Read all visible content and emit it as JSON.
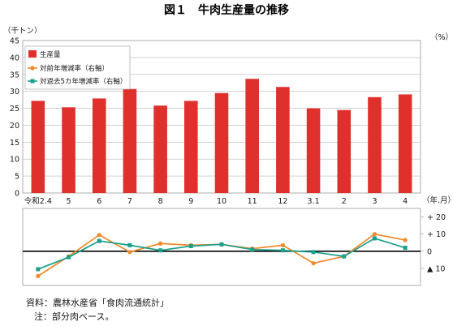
{
  "header": {
    "title": "図１　牛肉生産量の推移"
  },
  "axes": {
    "left_unit": "（千トン）",
    "right_unit": "（%）",
    "x_unit": "（年.月）"
  },
  "notes": {
    "source": "資料：農林水産省「食肉流通統計」",
    "note": "注：部分肉ベース。"
  },
  "chart_data": [
    {
      "type": "bar",
      "title": "図１　牛肉生産量の推移",
      "ylabel": "（千トン）",
      "xlabel": "（年.月）",
      "categories": [
        "令和2.4",
        "5",
        "6",
        "7",
        "8",
        "9",
        "10",
        "11",
        "12",
        "3.1",
        "2",
        "3",
        "4"
      ],
      "series": [
        {
          "name": "生産量",
          "color": "#e0302c",
          "values": [
            27.2,
            25.3,
            27.9,
            30.7,
            25.8,
            27.2,
            29.5,
            33.7,
            31.3,
            25.0,
            24.5,
            28.3,
            29.1
          ]
        }
      ],
      "ylim": [
        0,
        45
      ],
      "yticks": [
        0,
        5,
        10,
        15,
        20,
        25,
        30,
        35,
        40,
        45
      ],
      "grid": true,
      "legend": "top-left"
    },
    {
      "type": "line",
      "ylabel": "（%）",
      "categories": [
        "令和2.4",
        "5",
        "6",
        "7",
        "8",
        "9",
        "10",
        "11",
        "12",
        "3.1",
        "2",
        "3",
        "4"
      ],
      "series": [
        {
          "name": "対前年増減率（右軸）",
          "color": "#f08a2c",
          "values": [
            -14.5,
            -3.0,
            9.5,
            -0.5,
            4.5,
            3.5,
            4.0,
            1.5,
            3.5,
            -7.0,
            -3.0,
            10.0,
            6.5
          ]
        },
        {
          "name": "対過去5カ年増減率（右軸）",
          "color": "#1aa08a",
          "values": [
            -10.5,
            -3.5,
            6.0,
            3.5,
            0.5,
            3.0,
            4.0,
            1.0,
            0.5,
            -0.5,
            -3.0,
            7.5,
            2.0
          ]
        }
      ],
      "ylim": [
        -20,
        25
      ],
      "yticks": [
        {
          "value": 20,
          "label": "+ 20"
        },
        {
          "value": 10,
          "label": "+ 10"
        },
        {
          "value": 0,
          "label": "0"
        },
        {
          "value": -10,
          "label": "▲ 10"
        }
      ],
      "grid": false,
      "legend": "top-left"
    }
  ]
}
